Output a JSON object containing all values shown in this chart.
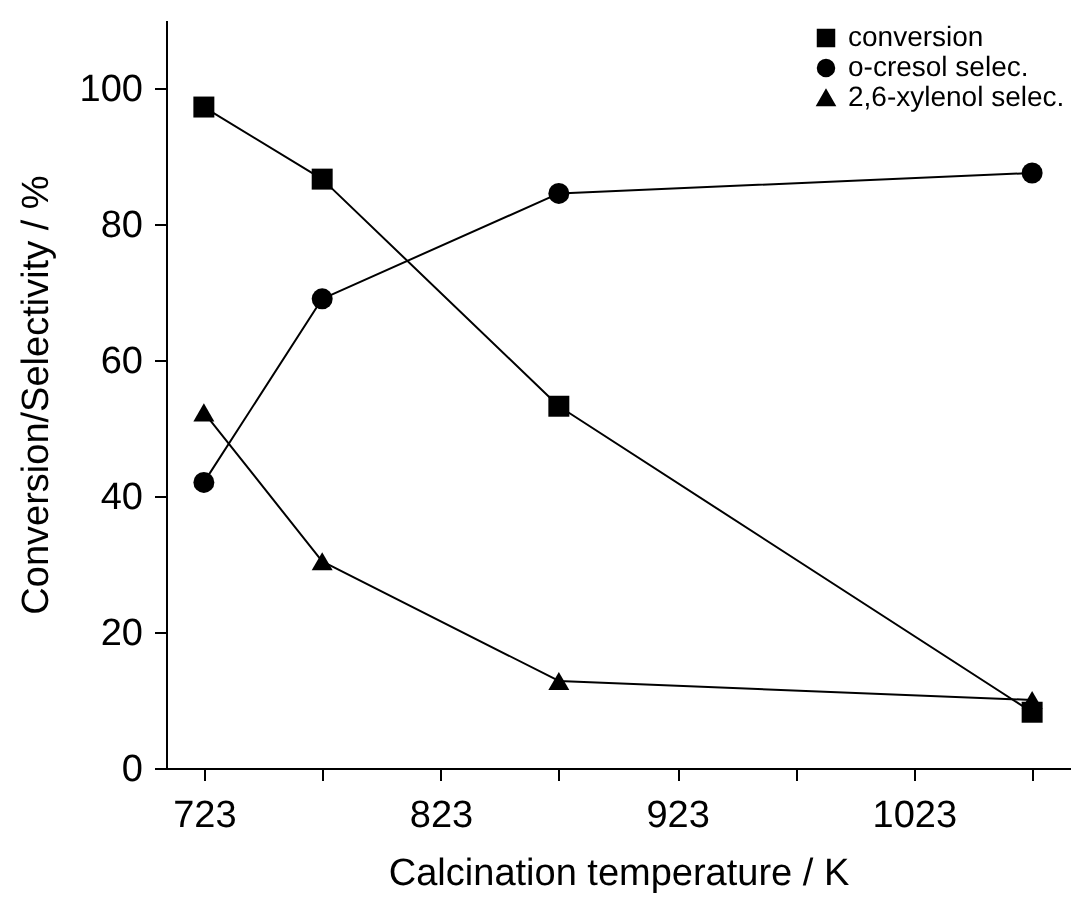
{
  "chart_data": {
    "type": "line",
    "xlabel": "Calcination temperature / K",
    "ylabel": "Conversion/Selectivity / %",
    "x": [
      723,
      773,
      873,
      1073
    ],
    "series": [
      {
        "name": "conversion",
        "color": "#000000",
        "marker": "square",
        "values": [
          97.2,
          86.6,
          53.2,
          8.2
        ]
      },
      {
        "name": "o-cresol selec.",
        "color": "#000000",
        "marker": "circle",
        "values": [
          42,
          69,
          84.5,
          87.5
        ]
      },
      {
        "name": "2,6-xylenol selec.",
        "color": "#000000",
        "marker": "triangle",
        "values": [
          52.3,
          30.4,
          12.8,
          10
        ]
      }
    ],
    "xlim": [
      707,
      1089
    ],
    "xticks": [
      723,
      {
        "value": 773,
        "label": null
      },
      823,
      {
        "value": 873,
        "label": null
      },
      923,
      {
        "value": 973,
        "label": null
      },
      1023,
      {
        "value": 1073,
        "label": null
      }
    ],
    "ylim": [
      0,
      110
    ],
    "yticks": [
      0,
      20,
      40,
      60,
      80,
      100
    ],
    "grid": false,
    "legend": "top right",
    "line_style": "solid"
  }
}
